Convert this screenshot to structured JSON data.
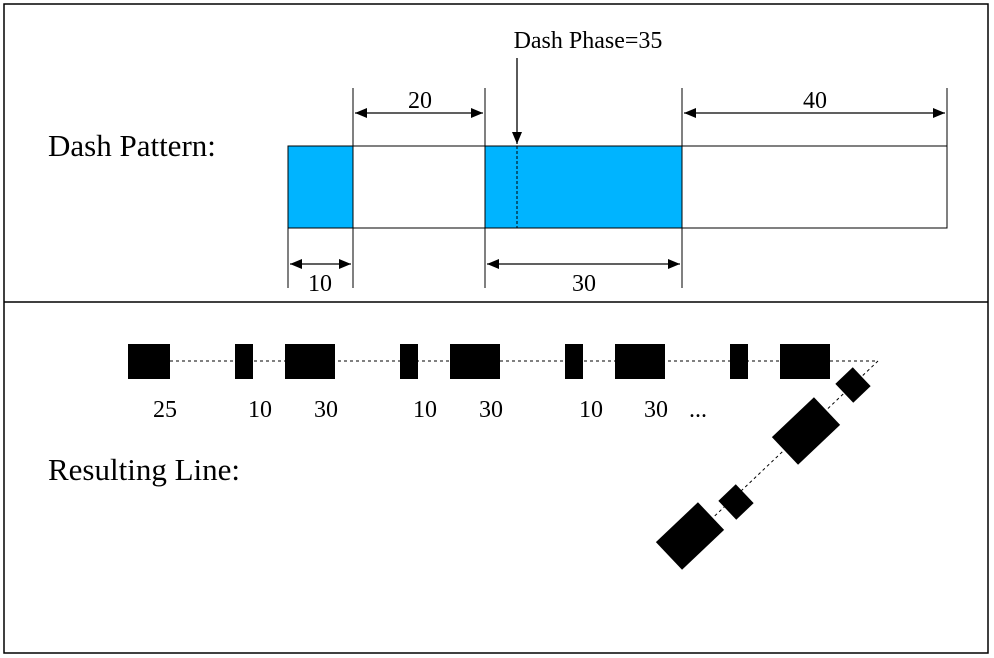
{
  "top_panel": {
    "section_label": "Dash Pattern:",
    "phase_label": "Dash Phase=35",
    "dims": {
      "on1": "10",
      "off1": "20",
      "on2": "30",
      "off2": "40"
    }
  },
  "bottom_panel": {
    "section_label": "Resulting Line:",
    "segment_labels": [
      "25",
      "10",
      "30",
      "10",
      "30",
      "10",
      "30",
      "..."
    ]
  },
  "colors": {
    "dash_fill": "#00b4ff",
    "line": "#000000",
    "background": "#ffffff"
  }
}
